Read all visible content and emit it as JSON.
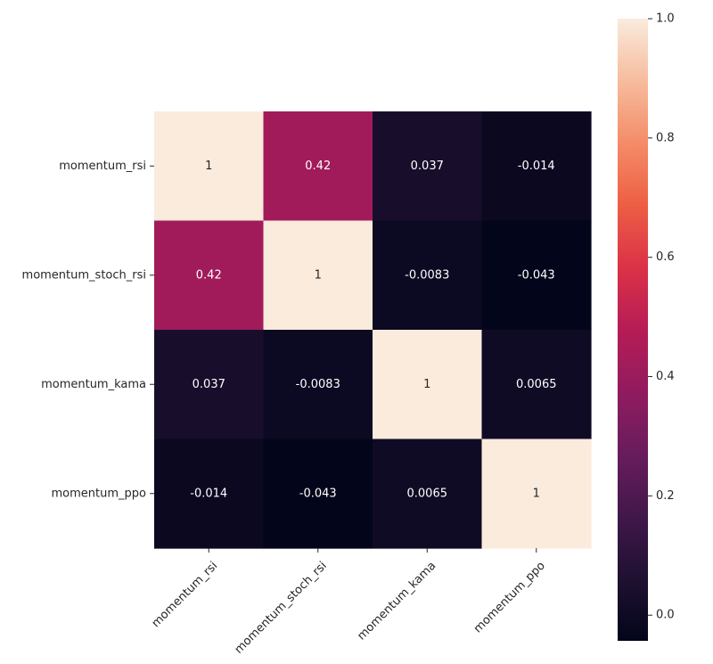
{
  "chart_data": {
    "type": "heatmap",
    "x_categories": [
      "momentum_rsi",
      "momentum_stoch_rsi",
      "momentum_kama",
      "momentum_ppo"
    ],
    "y_categories": [
      "momentum_rsi",
      "momentum_stoch_rsi",
      "momentum_kama",
      "momentum_ppo"
    ],
    "values": [
      [
        1,
        0.42,
        0.037,
        -0.014
      ],
      [
        0.42,
        1,
        -0.0083,
        -0.043
      ],
      [
        0.037,
        -0.0083,
        1,
        0.0065
      ],
      [
        -0.014,
        -0.043,
        0.0065,
        1
      ]
    ],
    "cell_labels": [
      [
        "1",
        "0.42",
        "0.037",
        "-0.014"
      ],
      [
        "0.42",
        "1",
        "-0.0083",
        "-0.043"
      ],
      [
        "0.037",
        "-0.0083",
        "1",
        "0.0065"
      ],
      [
        "-0.014",
        "-0.043",
        "0.0065",
        "1"
      ]
    ],
    "colormap": "rocket",
    "vmin": -0.043,
    "vmax": 1,
    "colorbar": {
      "range": [
        -0.043,
        1
      ],
      "ticks": [
        0.0,
        0.2,
        0.4,
        0.6,
        0.8,
        1.0
      ],
      "tick_labels": [
        "0.0",
        "0.2",
        "0.4",
        "0.6",
        "0.8",
        "1.0"
      ],
      "position": "right"
    },
    "title": "",
    "xlabel": "",
    "ylabel": "",
    "grid": false
  }
}
